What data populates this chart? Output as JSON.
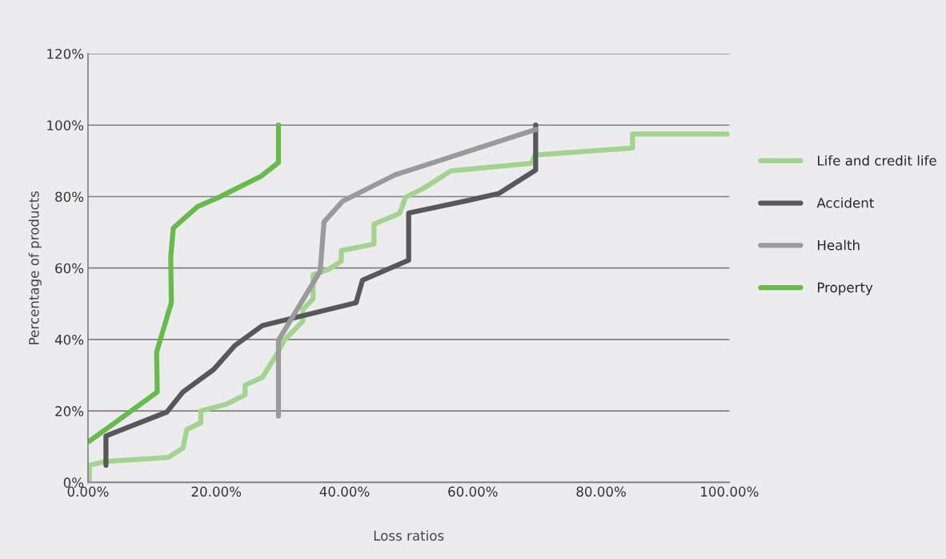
{
  "chart_data": {
    "type": "line",
    "xlabel": "Loss ratios",
    "ylabel": "Percentage of products",
    "xlim": [
      0,
      100
    ],
    "ylim": [
      0,
      120
    ],
    "xticks": [
      {
        "value": 0,
        "label": "0.00%"
      },
      {
        "value": 20,
        "label": "20.00%"
      },
      {
        "value": 40,
        "label": "40.00%"
      },
      {
        "value": 60,
        "label": "60.00%"
      },
      {
        "value": 80,
        "label": "80.00%"
      },
      {
        "value": 100,
        "label": "100.00%"
      }
    ],
    "yticks": [
      {
        "value": 0,
        "label": "0%"
      },
      {
        "value": 20,
        "label": "20%"
      },
      {
        "value": 40,
        "label": "40%"
      },
      {
        "value": 60,
        "label": "60%"
      },
      {
        "value": 80,
        "label": "80%"
      },
      {
        "value": 100,
        "label": "100%"
      },
      {
        "value": 120,
        "label": "120%"
      }
    ],
    "grid": "y",
    "legend": "right",
    "marker": "none",
    "line_style": "solid",
    "series": [
      {
        "name": "Life and credit life",
        "color": "#a3d48f",
        "x": [
          0.2,
          0.2,
          2.9,
          12.5,
          14.8,
          15.4,
          17.6,
          17.6,
          21.6,
          24.5,
          24.5,
          27.2,
          29.5,
          30.6,
          33.5,
          33.5,
          35.1,
          35.1,
          37.5,
          39.5,
          39.5,
          44.6,
          44.6,
          48.6,
          49.5,
          52.4,
          56.6,
          69.1,
          69.7,
          84.9,
          84.9,
          100
        ],
        "values": [
          0.3,
          4.8,
          5.9,
          7.0,
          9.6,
          14.8,
          16.7,
          20.0,
          21.9,
          24.5,
          27.2,
          29.4,
          36.1,
          39.8,
          45.1,
          48.4,
          51.4,
          58.1,
          59.6,
          61.9,
          64.9,
          66.7,
          72.3,
          75.3,
          79.8,
          82.4,
          87.2,
          89.3,
          91.6,
          93.6,
          97.5,
          97.5
        ]
      },
      {
        "name": "Accident",
        "color": "#58585a",
        "x": [
          2.8,
          2.8,
          12.3,
          14.8,
          19.6,
          22.9,
          27.2,
          41.8,
          42.8,
          50.0,
          50.0,
          59.5,
          64.1,
          69.8,
          69.8
        ],
        "values": [
          4.8,
          13.0,
          19.7,
          25.3,
          31.6,
          38.3,
          43.9,
          50.3,
          56.6,
          62.2,
          75.4,
          79.0,
          80.9,
          87.4,
          100
        ]
      },
      {
        "name": "Health",
        "color": "#9a9a9c",
        "x": [
          29.7,
          29.7,
          36.2,
          36.8,
          39.7,
          47.9,
          69.9
        ],
        "values": [
          18.6,
          39.8,
          59.1,
          72.9,
          78.7,
          86.1,
          98.8
        ]
      },
      {
        "name": "Property",
        "color": "#66bb4a",
        "x": [
          0.2,
          10.8,
          10.7,
          13.0,
          12.9,
          13.3,
          17.1,
          20.4,
          27.0,
          29.7,
          29.7
        ],
        "values": [
          11.5,
          25.3,
          36.5,
          50.3,
          63.0,
          71.2,
          77.2,
          79.8,
          85.7,
          89.5,
          100
        ]
      }
    ]
  }
}
